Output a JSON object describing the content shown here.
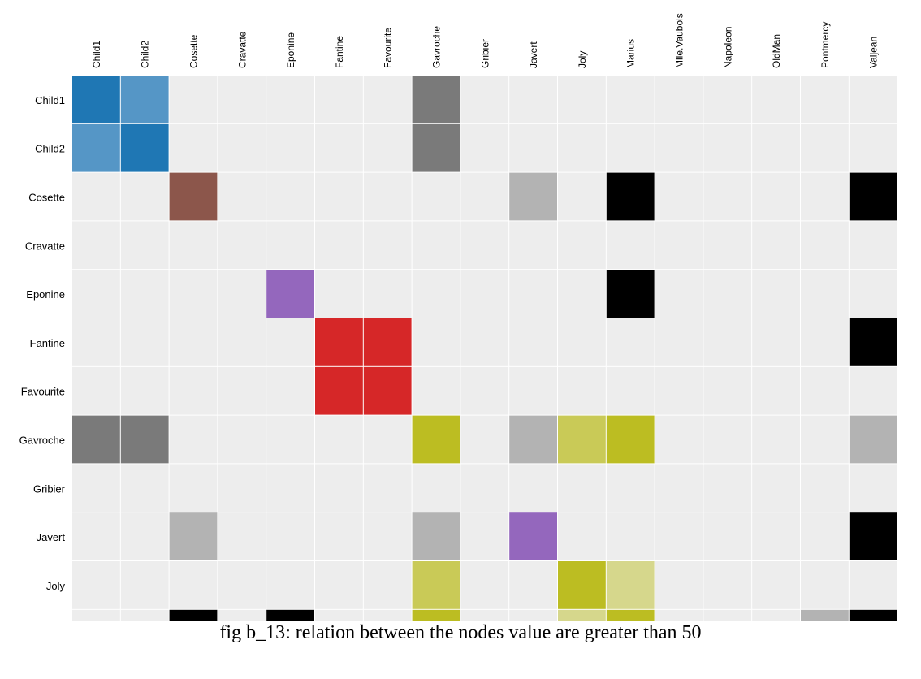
{
  "caption": "fig b_13: relation between the nodes value are greater than 50",
  "chart_data": {
    "type": "heatmap",
    "title": "",
    "columns": [
      "Child1",
      "Child2",
      "Cosette",
      "Cravatte",
      "Eponine",
      "Fantine",
      "Favourite",
      "Gavroche",
      "Gribier",
      "Javert",
      "Joly",
      "Marius",
      "Mlle.Vaubois",
      "Napoleon",
      "OldMan",
      "Pontmercy",
      "Valjean"
    ],
    "rows": [
      "Child1",
      "Child2",
      "Cosette",
      "Cravatte",
      "Eponine",
      "Fantine",
      "Favourite",
      "Gavroche",
      "Gribier",
      "Javert",
      "Joly",
      ""
    ],
    "background_color": "#ededed",
    "cells": [
      {
        "row": 0,
        "col": 0,
        "color": "#1f77b4"
      },
      {
        "row": 0,
        "col": 1,
        "color": "#5596c6"
      },
      {
        "row": 0,
        "col": 7,
        "color": "#7a7a7a"
      },
      {
        "row": 1,
        "col": 0,
        "color": "#5596c6"
      },
      {
        "row": 1,
        "col": 1,
        "color": "#1f77b4"
      },
      {
        "row": 1,
        "col": 7,
        "color": "#7a7a7a"
      },
      {
        "row": 2,
        "col": 2,
        "color": "#8c564b"
      },
      {
        "row": 2,
        "col": 9,
        "color": "#b3b3b3"
      },
      {
        "row": 2,
        "col": 11,
        "color": "#000000"
      },
      {
        "row": 2,
        "col": 16,
        "color": "#000000"
      },
      {
        "row": 4,
        "col": 4,
        "color": "#9467bd"
      },
      {
        "row": 4,
        "col": 11,
        "color": "#000000"
      },
      {
        "row": 5,
        "col": 5,
        "color": "#d62728"
      },
      {
        "row": 5,
        "col": 6,
        "color": "#d62728"
      },
      {
        "row": 5,
        "col": 16,
        "color": "#000000"
      },
      {
        "row": 6,
        "col": 5,
        "color": "#d62728"
      },
      {
        "row": 6,
        "col": 6,
        "color": "#d62728"
      },
      {
        "row": 7,
        "col": 0,
        "color": "#7a7a7a"
      },
      {
        "row": 7,
        "col": 1,
        "color": "#7a7a7a"
      },
      {
        "row": 7,
        "col": 7,
        "color": "#bcbd22"
      },
      {
        "row": 7,
        "col": 9,
        "color": "#b3b3b3"
      },
      {
        "row": 7,
        "col": 10,
        "color": "#c9ca57"
      },
      {
        "row": 7,
        "col": 11,
        "color": "#bcbd22"
      },
      {
        "row": 7,
        "col": 16,
        "color": "#b3b3b3"
      },
      {
        "row": 9,
        "col": 2,
        "color": "#b3b3b3"
      },
      {
        "row": 9,
        "col": 7,
        "color": "#b3b3b3"
      },
      {
        "row": 9,
        "col": 9,
        "color": "#9467bd"
      },
      {
        "row": 9,
        "col": 16,
        "color": "#000000"
      },
      {
        "row": 10,
        "col": 7,
        "color": "#c9ca57"
      },
      {
        "row": 10,
        "col": 10,
        "color": "#bcbd22"
      },
      {
        "row": 10,
        "col": 11,
        "color": "#d6d78c"
      },
      {
        "row": 11,
        "col": 2,
        "color": "#000000"
      },
      {
        "row": 11,
        "col": 4,
        "color": "#000000"
      },
      {
        "row": 11,
        "col": 7,
        "color": "#bcbd22"
      },
      {
        "row": 11,
        "col": 10,
        "color": "#d6d78c"
      },
      {
        "row": 11,
        "col": 11,
        "color": "#bcbd22"
      },
      {
        "row": 11,
        "col": 15,
        "color": "#b3b3b3"
      },
      {
        "row": 11,
        "col": 16,
        "color": "#000000"
      }
    ]
  }
}
